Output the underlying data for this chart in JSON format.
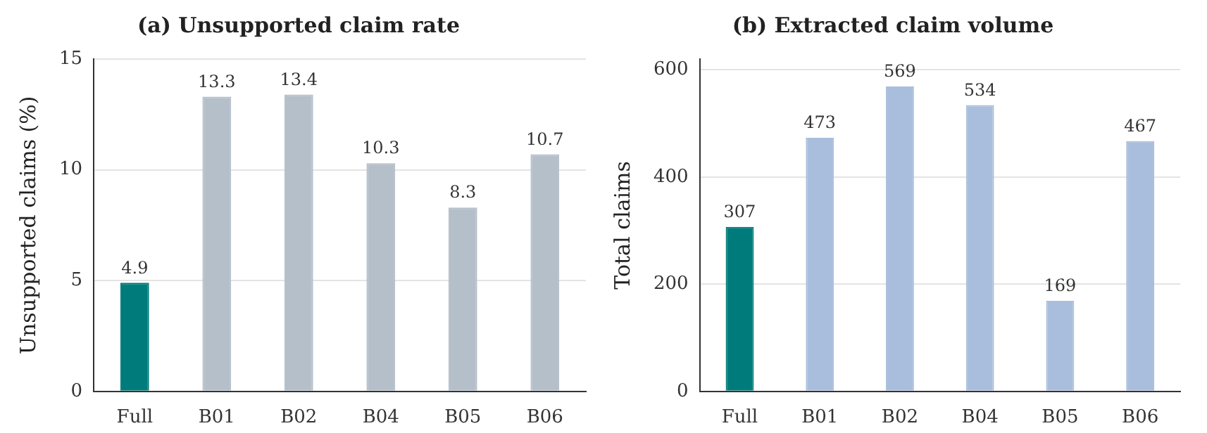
{
  "chart_data": [
    {
      "type": "bar",
      "title": "(a) Unsupported claim rate",
      "ylabel": "Unsupported claims (%)",
      "categories": [
        "Full",
        "B01",
        "B02",
        "B04",
        "B05",
        "B06"
      ],
      "values": [
        4.9,
        13.3,
        13.4,
        10.3,
        8.3,
        10.7
      ],
      "colors": [
        "#007b7b",
        "#b4bfca",
        "#b4bfca",
        "#b4bfca",
        "#b4bfca",
        "#b4bfca"
      ],
      "ylim": [
        0,
        15
      ],
      "yticks": [
        0,
        5,
        10,
        15
      ],
      "grid": "y",
      "data_labels": true
    },
    {
      "type": "bar",
      "title": "(b) Extracted claim volume",
      "ylabel": "Total claims",
      "categories": [
        "Full",
        "B01",
        "B02",
        "B04",
        "B05",
        "B06"
      ],
      "values": [
        307,
        473,
        569,
        534,
        169,
        467
      ],
      "colors": [
        "#007b7b",
        "#a9bedc",
        "#a9bedc",
        "#a9bedc",
        "#a9bedc",
        "#a9bedc"
      ],
      "ylim": [
        0,
        620
      ],
      "yticks": [
        0,
        200,
        400,
        600
      ],
      "grid": "y",
      "data_labels": true
    }
  ]
}
